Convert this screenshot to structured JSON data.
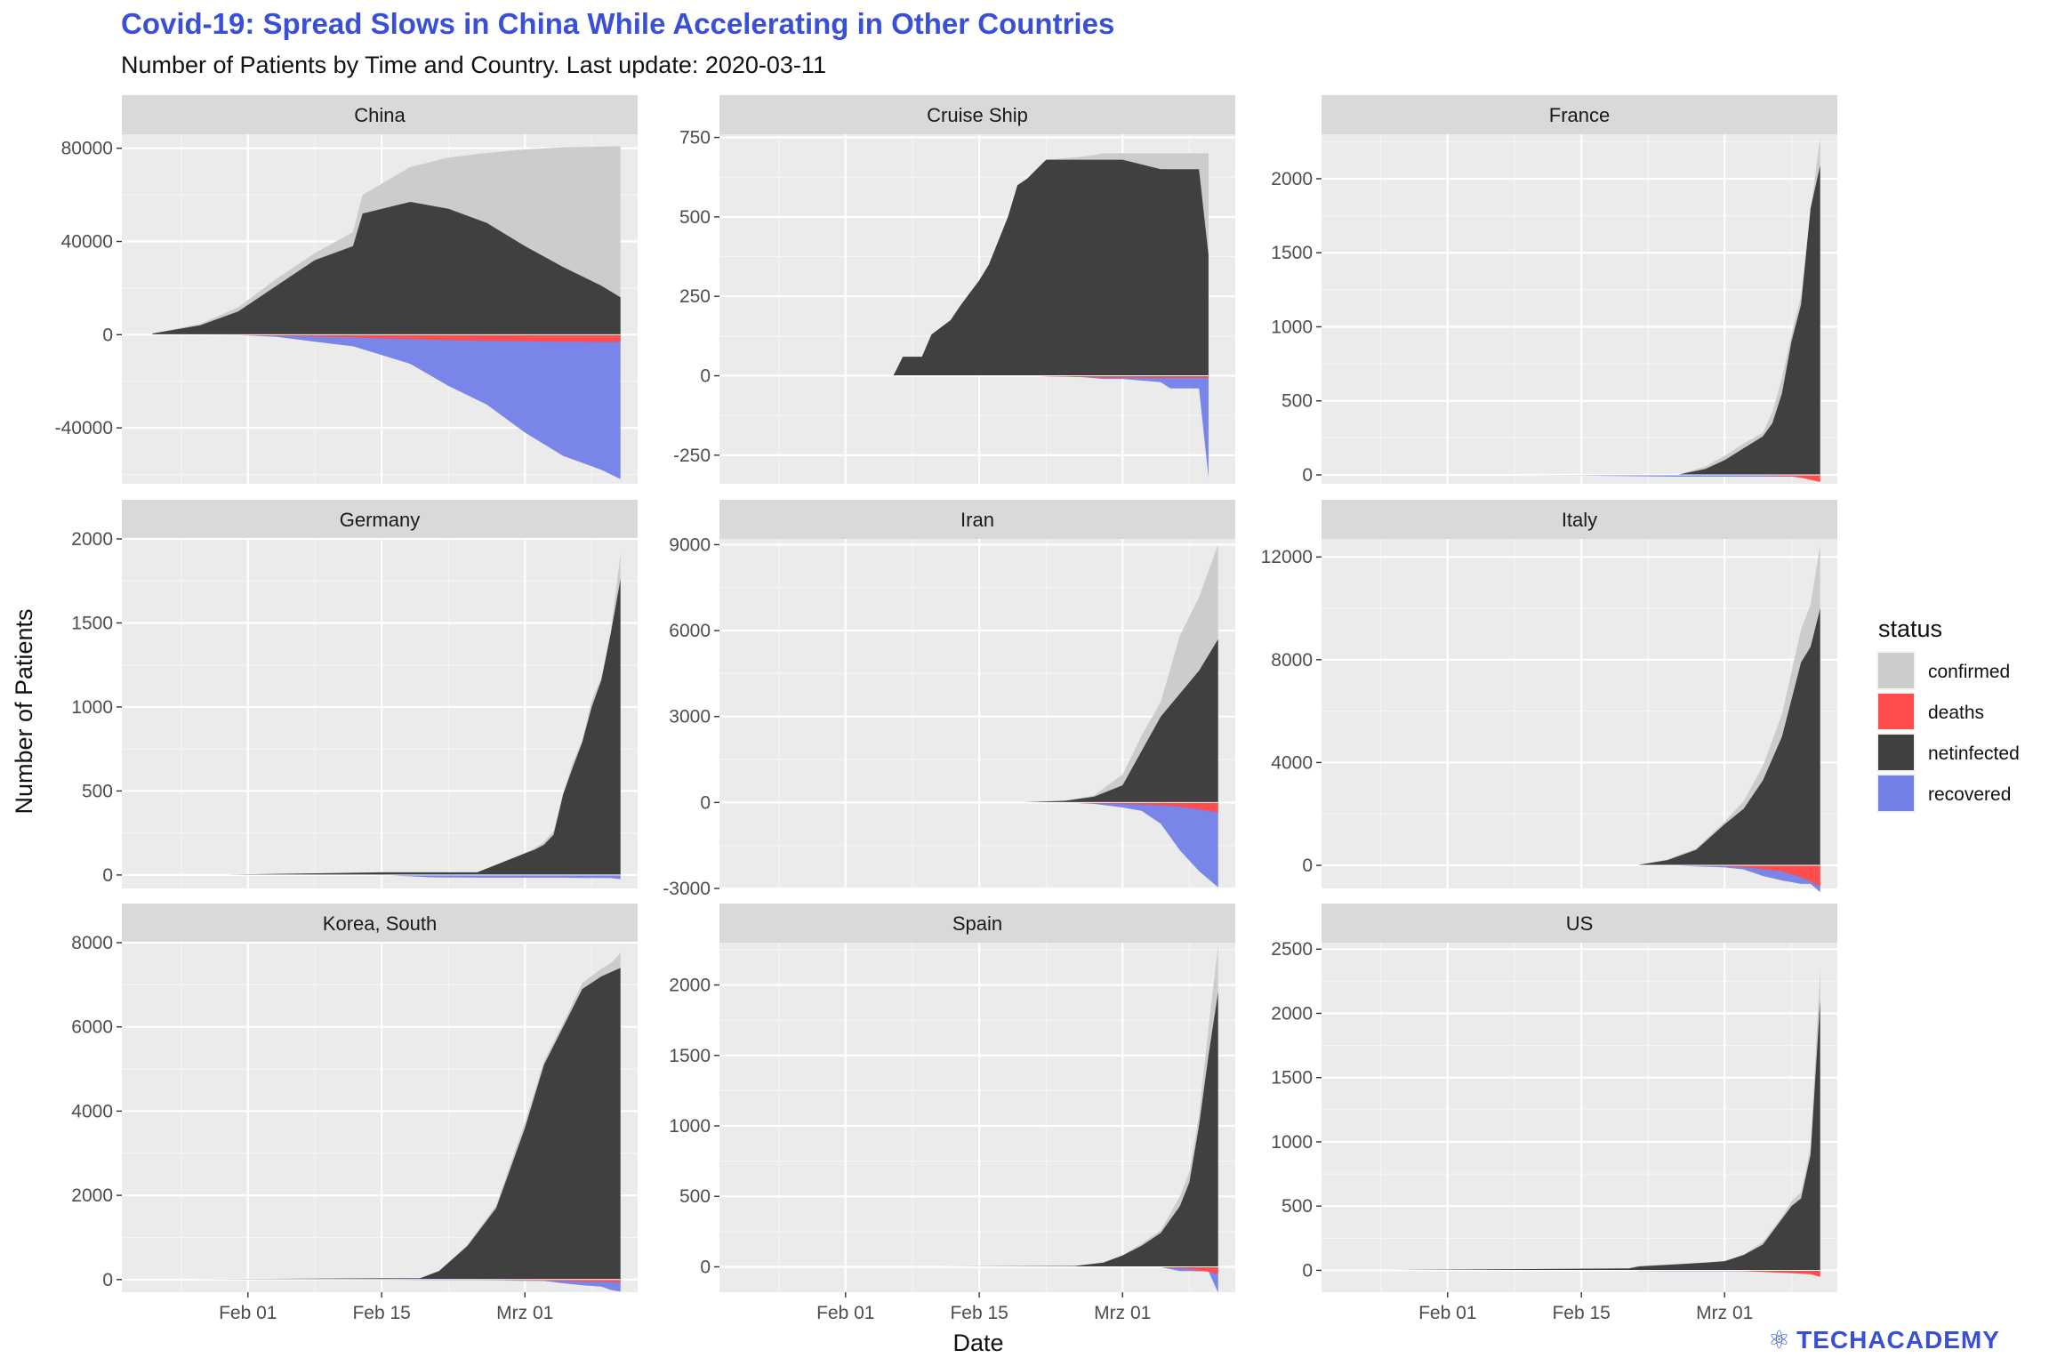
{
  "title": "Covid-19: Spread Slows in China While Accelerating in Other Countries",
  "subtitle": "Number of Patients by Time and Country. Last update: 2020-03-11",
  "logo_text": "TECHACADEMY",
  "chart_data": {
    "type": "area",
    "xlabel": "Date",
    "ylabel": "Number of Patients",
    "x_ticks": [
      "Feb 01",
      "Feb 15",
      "Mrz 01"
    ],
    "x_tick_dates": [
      "2020-02-01",
      "2020-02-15",
      "2020-03-01"
    ],
    "x_range": [
      "2020-01-22",
      "2020-03-11"
    ],
    "grid": true,
    "legend": {
      "title": "status",
      "placement": "right",
      "entries": [
        {
          "name": "confirmed",
          "color": "#cccccc"
        },
        {
          "name": "deaths",
          "color": "#ff4c4c"
        },
        {
          "name": "netinfected",
          "color": "#404040"
        },
        {
          "name": "recovered",
          "color": "#7380e8"
        }
      ]
    },
    "panels": [
      {
        "name": "China",
        "ylim": [
          -64000,
          86000
        ],
        "y_ticks": [
          -40000,
          0,
          40000,
          80000
        ],
        "y_tick_labels": [
          "-40000",
          "0",
          "40000",
          "80000"
        ],
        "dates": [
          "2020-01-22",
          "2020-01-27",
          "2020-01-31",
          "2020-02-04",
          "2020-02-08",
          "2020-02-12",
          "2020-02-13",
          "2020-02-18",
          "2020-02-22",
          "2020-02-26",
          "2020-03-01",
          "2020-03-05",
          "2020-03-09",
          "2020-03-11"
        ],
        "netinfected": [
          500,
          4000,
          10000,
          21000,
          32000,
          38000,
          52000,
          57000,
          54000,
          48000,
          38000,
          29000,
          21000,
          16000
        ],
        "confirmed": [
          550,
          4600,
          11800,
          24000,
          35000,
          44000,
          60000,
          72000,
          76000,
          78000,
          79500,
          80400,
          80700,
          80900
        ],
        "deaths": [
          17,
          80,
          250,
          490,
          800,
          1120,
          1350,
          1870,
          2340,
          2715,
          2870,
          3015,
          3120,
          3160
        ],
        "recovered": [
          28,
          50,
          140,
          900,
          3000,
          5000,
          6200,
          12500,
          22000,
          30000,
          42000,
          52000,
          58000,
          62000
        ]
      },
      {
        "name": "Cruise Ship",
        "ylim": [
          -340,
          760
        ],
        "y_ticks": [
          -250,
          0,
          250,
          500,
          750
        ],
        "y_tick_labels": [
          "-250",
          "0",
          "250",
          "500",
          "750"
        ],
        "dates": [
          "2020-02-06",
          "2020-02-07",
          "2020-02-09",
          "2020-02-10",
          "2020-02-12",
          "2020-02-13",
          "2020-02-15",
          "2020-02-16",
          "2020-02-18",
          "2020-02-19",
          "2020-02-20",
          "2020-02-22",
          "2020-02-26",
          "2020-02-28",
          "2020-03-01",
          "2020-03-05",
          "2020-03-06",
          "2020-03-07",
          "2020-03-09",
          "2020-03-10"
        ],
        "netinfected": [
          0,
          60,
          60,
          130,
          175,
          220,
          300,
          350,
          500,
          600,
          620,
          680,
          680,
          680,
          680,
          650,
          650,
          650,
          650,
          380
        ],
        "confirmed": [
          0,
          60,
          60,
          130,
          175,
          220,
          300,
          350,
          500,
          600,
          620,
          680,
          690,
          700,
          700,
          700,
          700,
          700,
          700,
          700
        ],
        "deaths": [
          0,
          0,
          0,
          0,
          0,
          0,
          0,
          0,
          0,
          0,
          0,
          2,
          4,
          6,
          6,
          7,
          7,
          7,
          7,
          7
        ],
        "recovered": [
          0,
          0,
          0,
          0,
          0,
          0,
          0,
          0,
          0,
          0,
          0,
          0,
          5,
          10,
          10,
          20,
          40,
          40,
          40,
          320
        ]
      },
      {
        "name": "France",
        "ylim": [
          -60,
          2300
        ],
        "y_ticks": [
          0,
          500,
          1000,
          1500,
          2000
        ],
        "y_tick_labels": [
          "0",
          "500",
          "1000",
          "1500",
          "2000"
        ],
        "dates": [
          "2020-01-24",
          "2020-02-15",
          "2020-02-25",
          "2020-02-28",
          "2020-03-01",
          "2020-03-03",
          "2020-03-05",
          "2020-03-06",
          "2020-03-07",
          "2020-03-08",
          "2020-03-09",
          "2020-03-10",
          "2020-03-11"
        ],
        "netinfected": [
          0,
          0,
          0,
          40,
          100,
          180,
          260,
          350,
          550,
          900,
          1150,
          1800,
          2090
        ],
        "confirmed": [
          0,
          0,
          0,
          57,
          130,
          212,
          285,
          423,
          653,
          949,
          1209,
          1784,
          2284
        ],
        "deaths": [
          0,
          1,
          2,
          2,
          2,
          4,
          4,
          7,
          9,
          11,
          19,
          33,
          48
        ],
        "recovered": [
          0,
          4,
          12,
          12,
          12,
          12,
          12,
          12,
          12,
          12,
          12,
          12,
          12
        ]
      },
      {
        "name": "Germany",
        "ylim": [
          -80,
          2000
        ],
        "y_ticks": [
          0,
          500,
          1000,
          1500,
          2000
        ],
        "y_tick_labels": [
          "0",
          "500",
          "1000",
          "1500",
          "2000"
        ],
        "dates": [
          "2020-01-27",
          "2020-02-15",
          "2020-02-20",
          "2020-02-25",
          "2020-03-01",
          "2020-03-02",
          "2020-03-03",
          "2020-03-04",
          "2020-03-05",
          "2020-03-06",
          "2020-03-07",
          "2020-03-08",
          "2020-03-09",
          "2020-03-10",
          "2020-03-11"
        ],
        "netinfected": [
          0,
          16,
          16,
          16,
          129,
          150,
          180,
          240,
          480,
          640,
          790,
          1000,
          1160,
          1440,
          1760
        ],
        "confirmed": [
          0,
          16,
          16,
          16,
          130,
          159,
          196,
          262,
          482,
          670,
          799,
          1040,
          1176,
          1457,
          1908
        ],
        "deaths": [
          0,
          0,
          0,
          0,
          0,
          0,
          0,
          0,
          0,
          0,
          0,
          0,
          2,
          2,
          3
        ],
        "recovered": [
          0,
          0,
          14,
          16,
          16,
          16,
          16,
          16,
          16,
          17,
          18,
          18,
          18,
          18,
          25
        ]
      },
      {
        "name": "Iran",
        "ylim": [
          -3000,
          9200
        ],
        "y_ticks": [
          -3000,
          0,
          3000,
          6000,
          9000
        ],
        "y_tick_labels": [
          "-3000",
          "0",
          "3000",
          "6000",
          "9000"
        ],
        "dates": [
          "2020-02-19",
          "2020-02-24",
          "2020-02-27",
          "2020-03-01",
          "2020-03-03",
          "2020-03-05",
          "2020-03-07",
          "2020-03-09",
          "2020-03-11"
        ],
        "netinfected": [
          2,
          60,
          200,
          600,
          1800,
          3000,
          3800,
          4600,
          5700
        ],
        "confirmed": [
          2,
          61,
          245,
          978,
          2336,
          3513,
          5823,
          7161,
          9000
        ],
        "deaths": [
          2,
          12,
          26,
          54,
          77,
          107,
          145,
          237,
          354
        ],
        "recovered": [
          0,
          0,
          49,
          175,
          291,
          739,
          1669,
          2394,
          2959
        ]
      },
      {
        "name": "Italy",
        "ylim": [
          -900,
          12700
        ],
        "y_ticks": [
          0,
          4000,
          8000,
          12000
        ],
        "y_tick_labels": [
          "0",
          "4000",
          "8000",
          "12000"
        ],
        "dates": [
          "2020-02-21",
          "2020-02-24",
          "2020-02-27",
          "2020-03-01",
          "2020-03-03",
          "2020-03-05",
          "2020-03-07",
          "2020-03-09",
          "2020-03-10",
          "2020-03-11"
        ],
        "netinfected": [
          20,
          200,
          600,
          1600,
          2200,
          3300,
          5000,
          7900,
          8500,
          10000
        ],
        "confirmed": [
          20,
          229,
          655,
          1694,
          2502,
          3858,
          5883,
          9172,
          10149,
          12462
        ],
        "deaths": [
          1,
          7,
          17,
          34,
          79,
          148,
          233,
          463,
          631,
          827
        ],
        "recovered": [
          0,
          1,
          45,
          83,
          160,
          414,
          589,
          724,
          724,
          1045
        ]
      },
      {
        "name": "Korea, South",
        "ylim": [
          -300,
          8000
        ],
        "y_ticks": [
          0,
          2000,
          4000,
          6000,
          8000
        ],
        "y_tick_labels": [
          "0",
          "2000",
          "4000",
          "6000",
          "8000"
        ],
        "dates": [
          "2020-01-22",
          "2020-02-15",
          "2020-02-19",
          "2020-02-21",
          "2020-02-24",
          "2020-02-27",
          "2020-03-01",
          "2020-03-03",
          "2020-03-05",
          "2020-03-07",
          "2020-03-09",
          "2020-03-10",
          "2020-03-11"
        ],
        "netinfected": [
          1,
          29,
          30,
          200,
          800,
          1700,
          3600,
          5100,
          6000,
          6900,
          7200,
          7300,
          7400
        ],
        "confirmed": [
          1,
          29,
          31,
          204,
          833,
          1766,
          3736,
          5186,
          6088,
          7041,
          7382,
          7513,
          7755
        ],
        "deaths": [
          0,
          0,
          0,
          1,
          8,
          13,
          17,
          28,
          35,
          48,
          51,
          54,
          60
        ],
        "recovered": [
          0,
          9,
          16,
          17,
          18,
          22,
          30,
          30,
          88,
          135,
          166,
          247,
          288
        ]
      },
      {
        "name": "Spain",
        "ylim": [
          -180,
          2300
        ],
        "y_ticks": [
          0,
          500,
          1000,
          1500,
          2000
        ],
        "y_tick_labels": [
          "0",
          "500",
          "1000",
          "1500",
          "2000"
        ],
        "dates": [
          "2020-02-01",
          "2020-02-25",
          "2020-02-28",
          "2020-03-01",
          "2020-03-03",
          "2020-03-05",
          "2020-03-07",
          "2020-03-08",
          "2020-03-09",
          "2020-03-10",
          "2020-03-11"
        ],
        "netinfected": [
          1,
          6,
          30,
          80,
          150,
          240,
          430,
          600,
          1000,
          1500,
          1950
        ],
        "confirmed": [
          1,
          6,
          32,
          84,
          165,
          259,
          500,
          673,
          1073,
          1695,
          2277
        ],
        "deaths": [
          0,
          0,
          0,
          0,
          1,
          3,
          10,
          17,
          28,
          35,
          54
        ],
        "recovered": [
          0,
          2,
          2,
          2,
          2,
          2,
          30,
          30,
          32,
          32,
          183
        ]
      },
      {
        "name": "US",
        "ylim": [
          -170,
          2550
        ],
        "y_ticks": [
          0,
          500,
          1000,
          1500,
          2000,
          2500
        ],
        "y_tick_labels": [
          "0",
          "500",
          "1000",
          "1500",
          "2000",
          "2500"
        ],
        "dates": [
          "2020-01-22",
          "2020-02-20",
          "2020-02-21",
          "2020-02-28",
          "2020-03-01",
          "2020-03-03",
          "2020-03-05",
          "2020-03-07",
          "2020-03-08",
          "2020-03-09",
          "2020-03-10",
          "2020-03-11"
        ],
        "netinfected": [
          1,
          15,
          30,
          60,
          70,
          120,
          200,
          400,
          500,
          560,
          900,
          2100
        ],
        "confirmed": [
          1,
          15,
          35,
          62,
          75,
          122,
          221,
          417,
          537,
          605,
          959,
          2350
        ],
        "deaths": [
          0,
          0,
          0,
          0,
          1,
          7,
          12,
          19,
          22,
          26,
          30,
          50
        ],
        "recovered": [
          0,
          0,
          5,
          7,
          7,
          7,
          7,
          8,
          8,
          8,
          8,
          8
        ]
      }
    ]
  }
}
